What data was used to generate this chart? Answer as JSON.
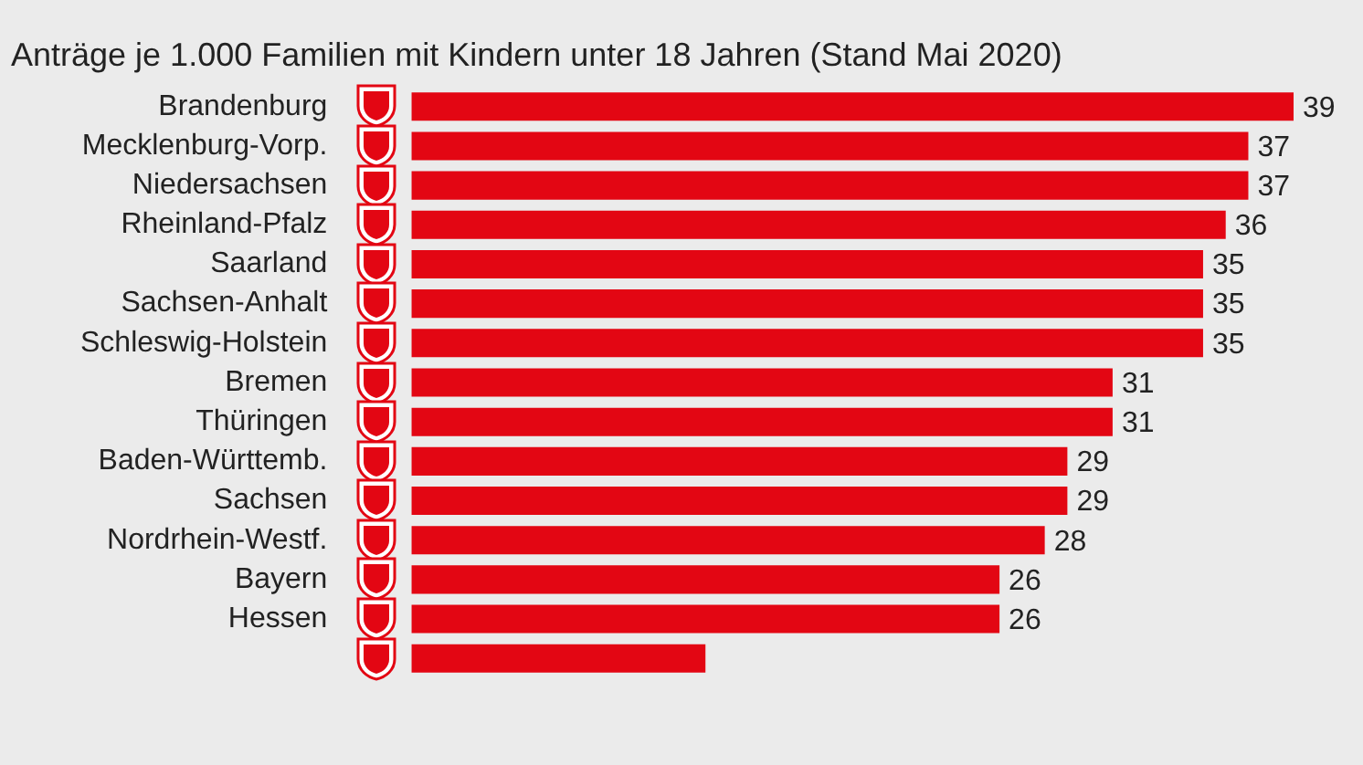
{
  "chart_data": {
    "type": "bar",
    "orientation": "horizontal",
    "title": "Anträge je 1.000 Familien mit Kindern unter 18 Jahren (Stand Mai 2020)",
    "categories": [
      "Brandenburg",
      "Mecklenburg-Vorp.",
      "Niedersachsen",
      "Rheinland-Pfalz",
      "Saarland",
      "Sachsen-Anhalt",
      "Schleswig-Holstein",
      "Bremen",
      "Thüringen",
      "Baden-Württemb.",
      "Sachsen",
      "Nordrhein-Westf.",
      "Bayern",
      "Hessen",
      null
    ],
    "values": [
      39,
      37,
      37,
      36,
      35,
      35,
      35,
      31,
      31,
      29,
      29,
      28,
      26,
      26,
      13
    ],
    "value_labels": [
      "39",
      "37",
      "37",
      "36",
      "35",
      "35",
      "35",
      "31",
      "31",
      "29",
      "29",
      "28",
      "26",
      "26",
      null
    ],
    "color": "#e30613"
  }
}
